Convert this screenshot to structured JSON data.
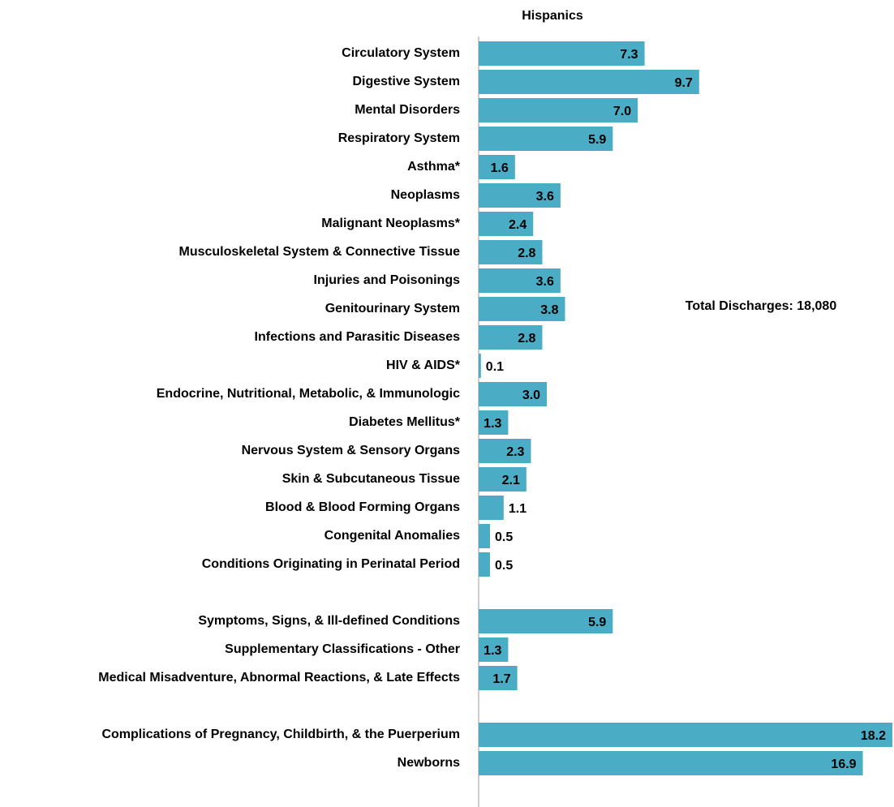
{
  "chart_data": {
    "type": "barh",
    "title": "Hispanics",
    "annotation": "Total Discharges:  18,080",
    "color": "#4bacc6",
    "categories": [
      "Circulatory System",
      "Digestive System",
      "Mental Disorders",
      "Respiratory System",
      "Asthma*",
      "Neoplasms",
      "Malignant  Neoplasms*",
      "Musculoskeletal System & Connective Tissue",
      "Injuries and Poisonings",
      "Genitourinary System",
      "Infections and Parasitic Diseases",
      "HIV & AIDS*",
      "Endocrine, Nutritional, Metabolic, & Immunologic",
      "Diabetes Mellitus*",
      "Nervous System & Sensory Organs",
      "Skin & Subcutaneous Tissue",
      "Blood & Blood Forming Organs",
      "Congenital Anomalies",
      "Conditions Originating in Perinatal Period",
      null,
      "Symptoms, Signs, & Ill-defined Conditions",
      "Supplementary Classifications  - Other",
      "Medical Misadventure, Abnormal Reactions, & Late Effects",
      null,
      "Complications of Pregnancy, Childbirth, & the Puerperium",
      "Newborns"
    ],
    "values": [
      7.3,
      9.7,
      7.0,
      5.9,
      1.6,
      3.6,
      2.4,
      2.8,
      3.6,
      3.8,
      2.8,
      0.1,
      3.0,
      1.3,
      2.3,
      2.1,
      1.1,
      0.5,
      0.5,
      null,
      5.9,
      1.3,
      1.7,
      null,
      18.2,
      16.9
    ],
    "value_labels": [
      "7.3",
      "9.7",
      "7.0",
      "5.9",
      "1.6",
      "3.6",
      "2.4",
      "2.8",
      "3.6",
      "3.8",
      "2.8",
      "0.1",
      "3.0",
      "1.3",
      "2.3",
      "2.1",
      "1.1",
      "0.5",
      "0.5",
      null,
      "5.9",
      "1.3",
      "1.7",
      null,
      "18.2",
      "16.9"
    ]
  }
}
